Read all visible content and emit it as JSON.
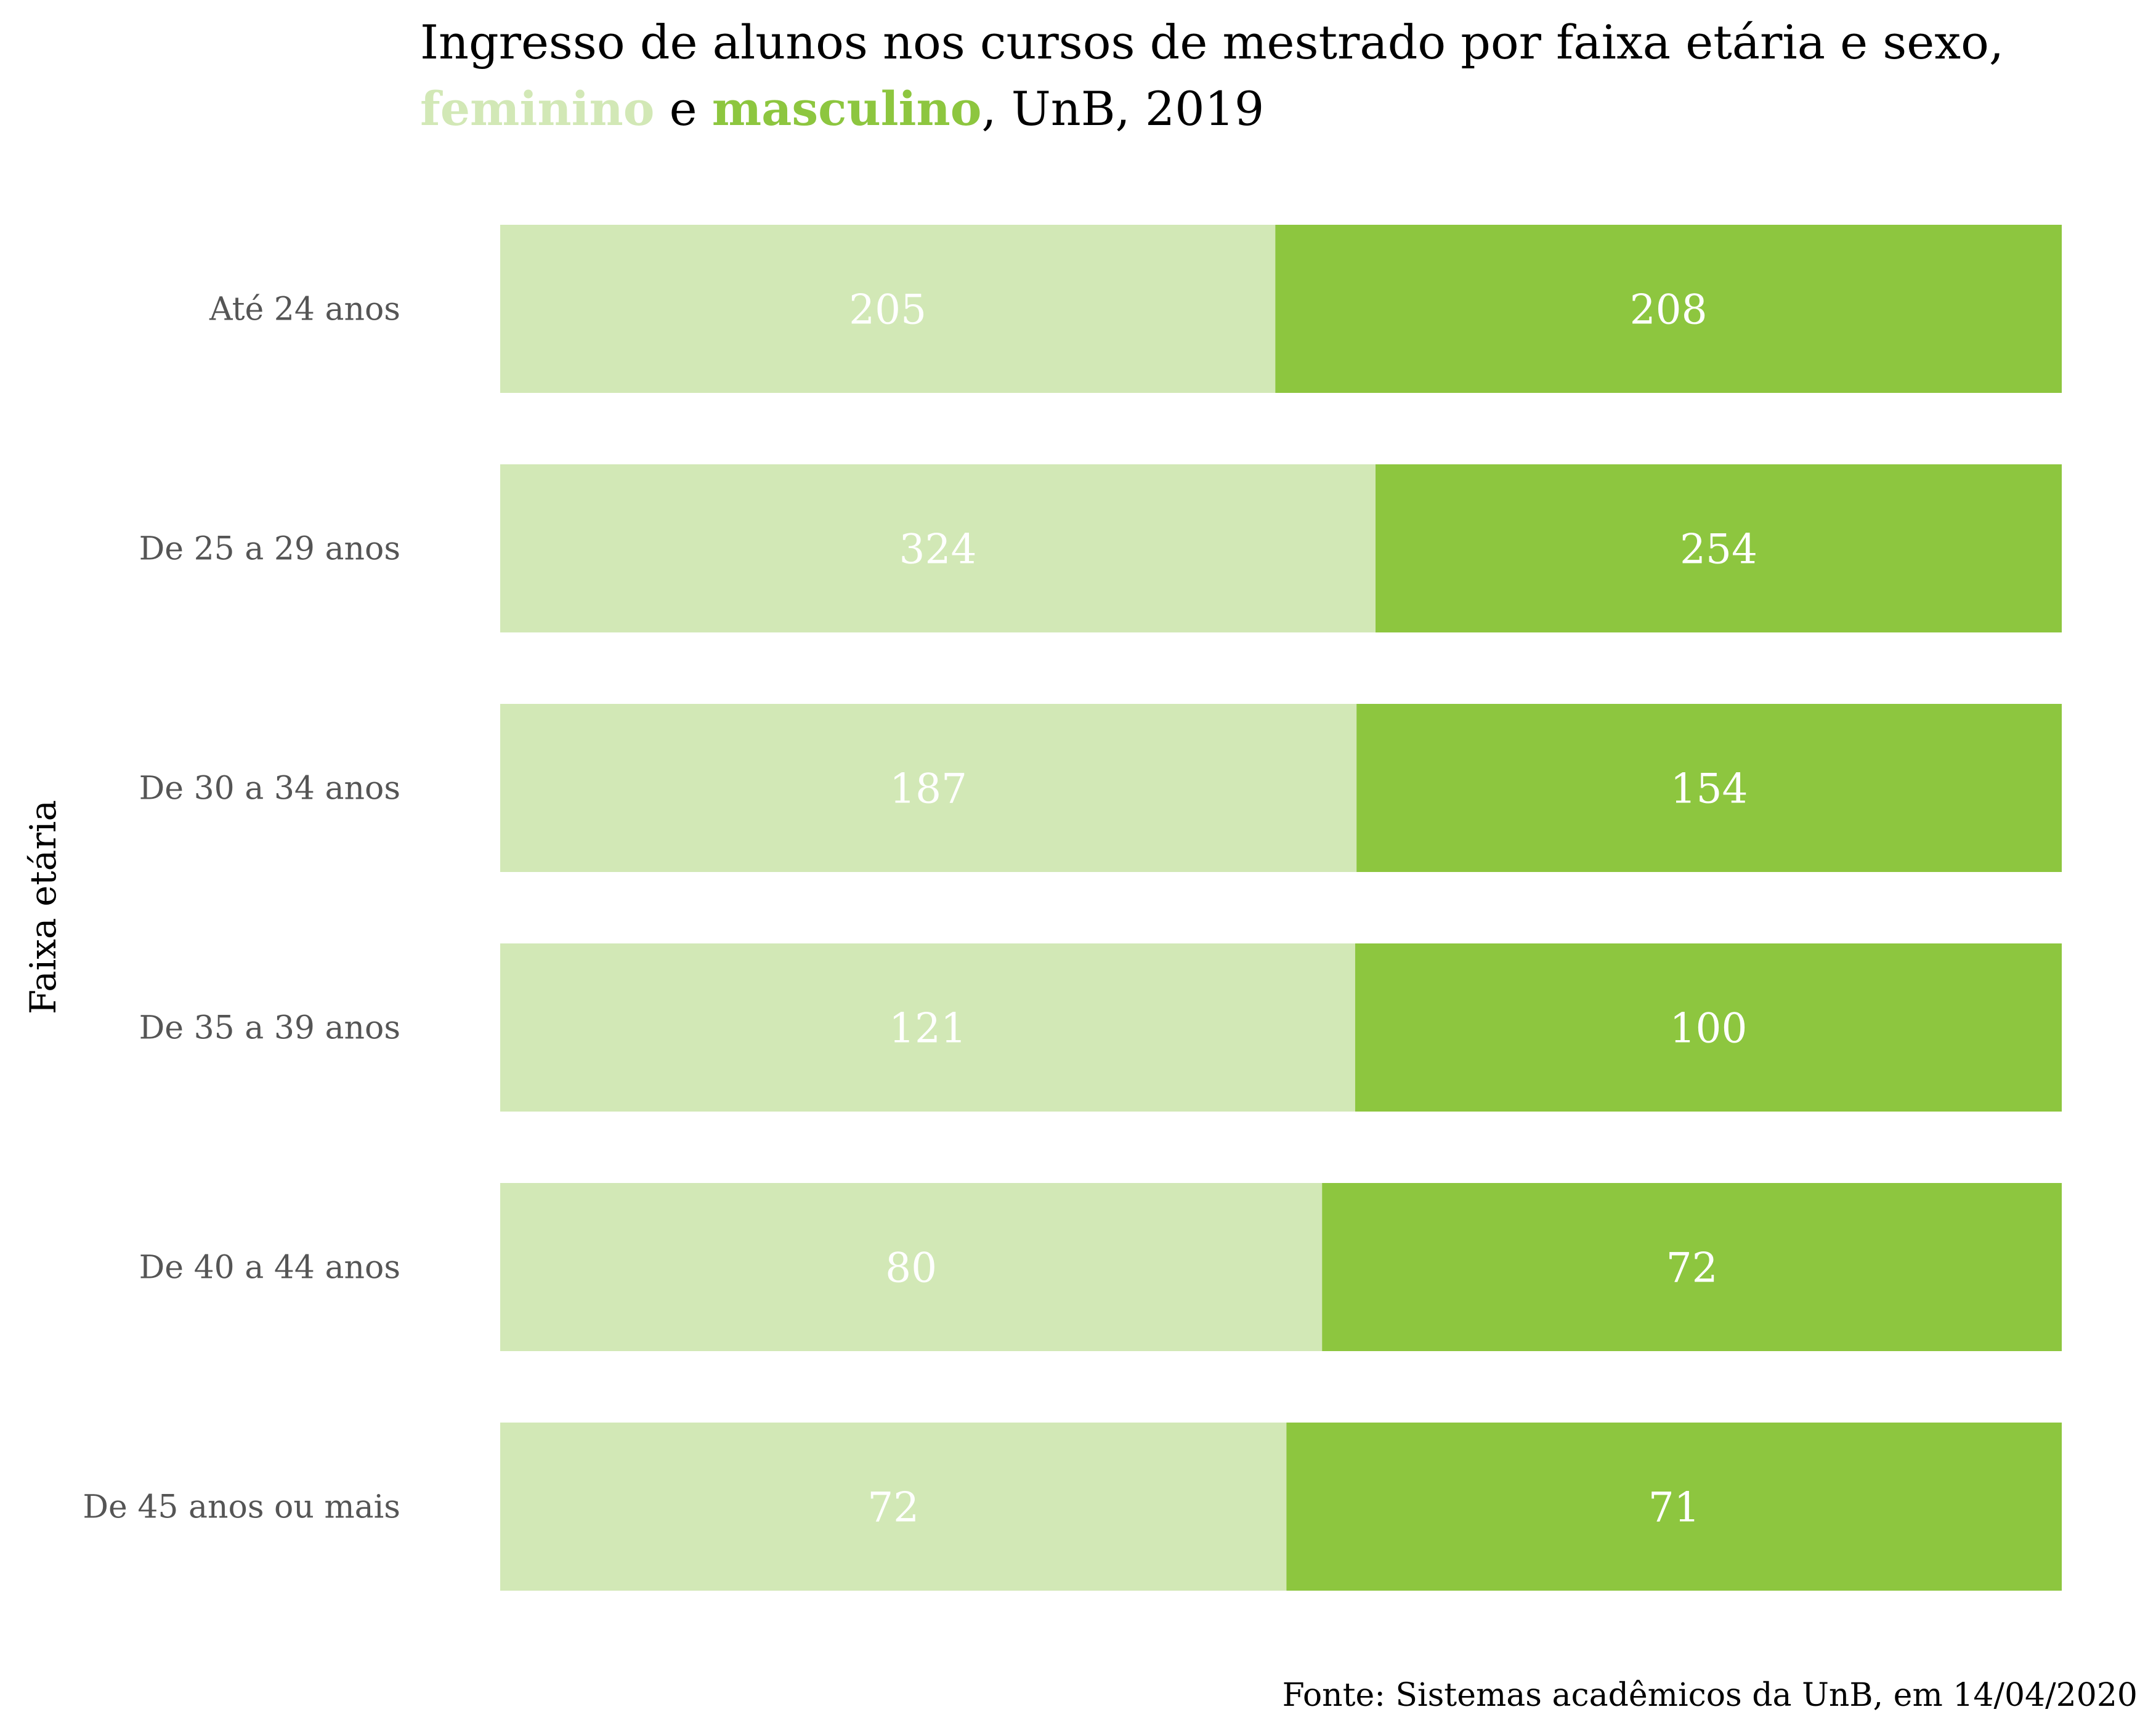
{
  "title": {
    "line1": "Ingresso de alunos nos cursos de mestrado por faixa etária e sexo,",
    "feminino": "feminino",
    "connector": " e ",
    "masculino": "masculino",
    "tail": ", UnB, 2019"
  },
  "source": "Fonte: Sistemas acadêmicos da UnB, em 14/04/2020",
  "colors": {
    "feminino": "#d2e8b6",
    "masculino": "#8dc63f"
  },
  "chart_data": {
    "type": "bar",
    "orientation": "horizontal",
    "stacking": "percent",
    "ylabel": "Faixa etária",
    "categories": [
      "Até 24 anos",
      "De 25 a 29 anos",
      "De 30 a 34 anos",
      "De 35 a 39 anos",
      "De 40 a 44 anos",
      "De 45 anos ou mais"
    ],
    "series": [
      {
        "name": "feminino",
        "values": [
          205,
          324,
          187,
          121,
          80,
          72
        ]
      },
      {
        "name": "masculino",
        "values": [
          208,
          254,
          154,
          100,
          72,
          71
        ]
      }
    ],
    "grid": false,
    "legend": "title"
  }
}
